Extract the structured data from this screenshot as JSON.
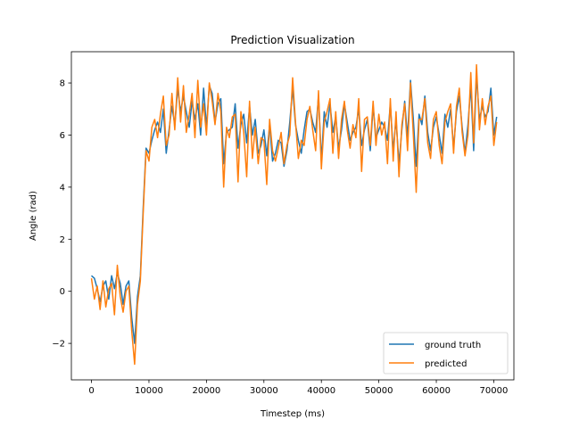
{
  "chart_data": {
    "type": "line",
    "title": "Prediction Visualization",
    "xlabel": "Timestep (ms)",
    "ylabel": "Angle (rad)",
    "xlim": [
      -3500,
      73500
    ],
    "ylim": [
      -3.4,
      9.2
    ],
    "xticks": [
      0,
      10000,
      20000,
      30000,
      40000,
      50000,
      60000,
      70000
    ],
    "yticks": [
      -2,
      0,
      2,
      4,
      6,
      8
    ],
    "grid": false,
    "legend_position": "lower-right",
    "series": [
      {
        "name": "ground truth",
        "color": "#1f77b4",
        "x": [
          0,
          500,
          1000,
          1500,
          2000,
          2500,
          3000,
          3500,
          4000,
          4500,
          5000,
          5500,
          6000,
          6500,
          7000,
          7500,
          8000,
          8500,
          9000,
          9500,
          10000,
          10500,
          11000,
          11500,
          12000,
          12500,
          13000,
          13500,
          14000,
          14500,
          15000,
          15500,
          16000,
          16500,
          17000,
          17500,
          18000,
          18500,
          19000,
          19500,
          20000,
          20500,
          21000,
          21500,
          22000,
          22500,
          23000,
          23500,
          24000,
          24500,
          25000,
          25500,
          26000,
          26500,
          27000,
          27500,
          28000,
          28500,
          29000,
          29500,
          30000,
          30500,
          31000,
          31500,
          32000,
          32500,
          33000,
          33500,
          34000,
          34500,
          35000,
          35500,
          36000,
          36500,
          37000,
          37500,
          38000,
          38500,
          39000,
          39500,
          40000,
          40500,
          41000,
          41500,
          42000,
          42500,
          43000,
          43500,
          44000,
          44500,
          45000,
          45500,
          46000,
          46500,
          47000,
          47500,
          48000,
          48500,
          49000,
          49500,
          50000,
          50500,
          51000,
          51500,
          52000,
          52500,
          53000,
          53500,
          54000,
          54500,
          55000,
          55500,
          56000,
          56500,
          57000,
          57500,
          58000,
          58500,
          59000,
          59500,
          60000,
          60500,
          61000,
          61500,
          62000,
          62500,
          63000,
          63500,
          64000,
          64500,
          65000,
          65500,
          66000,
          66500,
          67000,
          67500,
          68000,
          68500,
          69000,
          69500,
          70000,
          70500
        ],
        "y": [
          0.6,
          0.5,
          0.1,
          -0.4,
          0.2,
          0.4,
          -0.3,
          0.6,
          0.1,
          0.7,
          0.3,
          -0.5,
          0.2,
          0.4,
          -1.0,
          -2.0,
          -0.2,
          0.6,
          3.2,
          5.5,
          5.3,
          5.8,
          6.2,
          6.5,
          6.1,
          7.0,
          5.3,
          6.2,
          7.1,
          6.4,
          7.8,
          6.9,
          7.5,
          6.9,
          6.3,
          7.3,
          6.6,
          7.2,
          6.0,
          7.8,
          6.3,
          7.9,
          7.6,
          6.5,
          7.2,
          7.4,
          4.9,
          6.1,
          6.2,
          6.3,
          7.2,
          5.5,
          6.4,
          6.8,
          5.7,
          7.1,
          6.0,
          6.6,
          5.3,
          5.6,
          6.2,
          5.2,
          6.4,
          5.0,
          5.3,
          5.8,
          5.7,
          4.8,
          5.4,
          6.5,
          7.8,
          6.4,
          5.8,
          5.3,
          6.2,
          6.9,
          7.0,
          6.5,
          6.1,
          7.5,
          5.0,
          6.9,
          6.3,
          7.2,
          6.1,
          6.7,
          5.5,
          6.2,
          7.2,
          6.5,
          5.8,
          6.1,
          6.3,
          7.0,
          5.6,
          6.2,
          6.6,
          5.4,
          7.1,
          5.9,
          6.2,
          6.5,
          6.3,
          5.8,
          7.2,
          5.4,
          6.6,
          4.9,
          6.2,
          7.3,
          5.9,
          8.1,
          6.6,
          4.8,
          6.8,
          6.4,
          7.5,
          6.1,
          5.4,
          6.3,
          6.7,
          6.0,
          5.3,
          6.8,
          6.3,
          7.0,
          5.5,
          6.9,
          7.5,
          6.3,
          5.3,
          6.4,
          7.9,
          5.4,
          8.3,
          6.6,
          7.1,
          6.7,
          6.9,
          7.8,
          6.0,
          6.7
        ]
      },
      {
        "name": "predicted",
        "color": "#ff7f0e",
        "x": [
          0,
          500,
          1000,
          1500,
          2000,
          2500,
          3000,
          3500,
          4000,
          4500,
          5000,
          5500,
          6000,
          6500,
          7000,
          7500,
          8000,
          8500,
          9000,
          9500,
          10000,
          10500,
          11000,
          11500,
          12000,
          12500,
          13000,
          13500,
          14000,
          14500,
          15000,
          15500,
          16000,
          16500,
          17000,
          17500,
          18000,
          18500,
          19000,
          19500,
          20000,
          20500,
          21000,
          21500,
          22000,
          22500,
          23000,
          23500,
          24000,
          24500,
          25000,
          25500,
          26000,
          26500,
          27000,
          27500,
          28000,
          28500,
          29000,
          29500,
          30000,
          30500,
          31000,
          31500,
          32000,
          32500,
          33000,
          33500,
          34000,
          34500,
          35000,
          35500,
          36000,
          36500,
          37000,
          37500,
          38000,
          38500,
          39000,
          39500,
          40000,
          40500,
          41000,
          41500,
          42000,
          42500,
          43000,
          43500,
          44000,
          44500,
          45000,
          45500,
          46000,
          46500,
          47000,
          47500,
          48000,
          48500,
          49000,
          49500,
          50000,
          50500,
          51000,
          51500,
          52000,
          52500,
          53000,
          53500,
          54000,
          54500,
          55000,
          55500,
          56000,
          56500,
          57000,
          57500,
          58000,
          58500,
          59000,
          59500,
          60000,
          60500,
          61000,
          61500,
          62000,
          62500,
          63000,
          63500,
          64000,
          64500,
          65000,
          65500,
          66000,
          66500,
          67000,
          67500,
          68000,
          68500,
          69000,
          69500,
          70000,
          70500
        ],
        "y": [
          0.5,
          -0.3,
          0.2,
          -0.7,
          0.4,
          -0.6,
          0.1,
          0.3,
          -0.9,
          1.0,
          -0.2,
          -0.8,
          0.0,
          0.2,
          -1.5,
          -2.8,
          -0.5,
          0.4,
          3.0,
          5.4,
          5.0,
          6.3,
          6.6,
          5.9,
          6.8,
          7.5,
          5.6,
          6.0,
          7.6,
          6.2,
          8.2,
          6.5,
          7.9,
          6.1,
          6.8,
          7.6,
          5.9,
          8.1,
          6.3,
          7.2,
          6.0,
          8.0,
          7.3,
          6.4,
          7.6,
          6.9,
          4.0,
          6.3,
          5.9,
          6.7,
          6.8,
          4.2,
          6.9,
          6.1,
          4.4,
          7.3,
          5.1,
          6.3,
          4.9,
          5.9,
          5.8,
          4.1,
          6.6,
          5.4,
          5.0,
          5.5,
          6.1,
          4.9,
          5.6,
          6.0,
          8.2,
          6.5,
          5.1,
          5.8,
          5.6,
          6.6,
          7.1,
          6.2,
          5.4,
          7.7,
          4.7,
          6.5,
          6.9,
          7.4,
          5.3,
          6.9,
          5.1,
          6.6,
          7.3,
          6.2,
          5.5,
          6.4,
          5.9,
          7.4,
          4.6,
          6.6,
          6.7,
          5.6,
          7.3,
          5.6,
          6.8,
          6.0,
          6.5,
          4.9,
          7.4,
          5.0,
          6.9,
          4.4,
          6.4,
          7.2,
          5.4,
          8.0,
          6.0,
          3.8,
          6.6,
          6.6,
          7.4,
          5.7,
          5.1,
          6.6,
          6.9,
          5.6,
          4.9,
          6.5,
          6.9,
          7.2,
          5.3,
          7.1,
          7.8,
          6.1,
          5.2,
          6.0,
          8.4,
          5.7,
          8.7,
          6.2,
          7.4,
          6.4,
          7.1,
          7.5,
          5.6,
          6.5
        ]
      }
    ]
  }
}
